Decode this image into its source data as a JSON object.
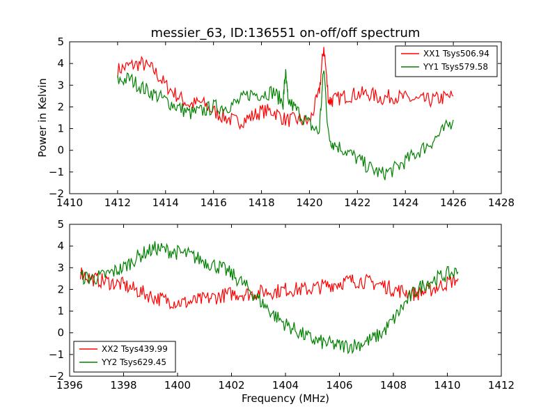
{
  "title": "messier_63, ID:136551 on-off/off spectrum",
  "colors": {
    "red": "#ff0000",
    "green": "#008000"
  },
  "chart_data": [
    {
      "type": "line",
      "xlabel": "",
      "ylabel": "Power in Kelvin",
      "xlim": [
        1410,
        1428
      ],
      "ylim": [
        -2,
        5
      ],
      "xticks": [
        "1410",
        "1412",
        "1414",
        "1416",
        "1418",
        "1420",
        "1422",
        "1424",
        "1426",
        "1428"
      ],
      "yticks": [
        "−2",
        "−1",
        "0",
        "1",
        "2",
        "3",
        "4",
        "5"
      ],
      "grid": false,
      "legend_position": "top-right",
      "series": [
        {
          "name": "XX1 Tsys506.94",
          "color": "#ff0000",
          "x": [
            1412.0,
            1412.5,
            1413.0,
            1413.5,
            1414.0,
            1414.5,
            1415.0,
            1415.5,
            1416.0,
            1416.5,
            1417.0,
            1417.5,
            1418.0,
            1418.5,
            1419.0,
            1419.5,
            1420.0,
            1420.4,
            1420.6,
            1420.8,
            1421.0,
            1421.5,
            1422.0,
            1422.5,
            1423.0,
            1423.5,
            1424.0,
            1424.5,
            1425.0,
            1425.5,
            1426.0
          ],
          "y": [
            3.7,
            3.9,
            4.0,
            3.7,
            3.0,
            2.5,
            2.1,
            2.2,
            1.8,
            1.5,
            1.3,
            1.5,
            1.8,
            1.8,
            1.4,
            1.4,
            1.3,
            2.6,
            4.8,
            2.3,
            2.3,
            2.5,
            2.6,
            2.6,
            2.4,
            2.5,
            2.4,
            2.3,
            2.3,
            2.4,
            2.5
          ]
        },
        {
          "name": "YY1 Tsys579.58",
          "color": "#008000",
          "x": [
            1412.0,
            1412.5,
            1413.0,
            1413.5,
            1414.0,
            1414.5,
            1415.0,
            1415.5,
            1416.0,
            1416.5,
            1417.0,
            1417.5,
            1418.0,
            1418.5,
            1418.9,
            1419.0,
            1419.1,
            1419.5,
            1420.0,
            1420.4,
            1420.6,
            1420.8,
            1421.0,
            1421.5,
            1422.0,
            1422.5,
            1423.0,
            1423.5,
            1424.0,
            1424.5,
            1425.0,
            1425.5,
            1426.0
          ],
          "y": [
            3.2,
            3.3,
            2.9,
            2.6,
            2.3,
            2.0,
            1.7,
            1.8,
            2.0,
            2.0,
            2.2,
            2.6,
            2.6,
            2.7,
            2.2,
            3.6,
            2.3,
            1.8,
            1.2,
            0.8,
            3.8,
            0.6,
            0.3,
            0.0,
            -0.4,
            -0.8,
            -1.1,
            -0.9,
            -0.5,
            -0.1,
            0.3,
            0.8,
            1.4
          ]
        }
      ]
    },
    {
      "type": "line",
      "xlabel": "Frequency (MHz)",
      "ylabel": "",
      "xlim": [
        1396,
        1412
      ],
      "ylim": [
        -2,
        5
      ],
      "xticks": [
        "1396",
        "1398",
        "1400",
        "1402",
        "1404",
        "1406",
        "1408",
        "1410",
        "1412"
      ],
      "yticks": [
        "−2",
        "−1",
        "0",
        "1",
        "2",
        "3",
        "4",
        "5"
      ],
      "grid": false,
      "legend_position": "bottom-left",
      "series": [
        {
          "name": "XX2 Tsys439.99",
          "color": "#ff0000",
          "x": [
            1396.4,
            1396.8,
            1397.2,
            1397.6,
            1398.0,
            1398.4,
            1398.8,
            1399.2,
            1399.6,
            1400.0,
            1400.4,
            1400.8,
            1401.2,
            1401.6,
            1402.0,
            1402.4,
            1402.8,
            1403.2,
            1403.6,
            1404.0,
            1404.4,
            1404.8,
            1405.2,
            1405.6,
            1406.0,
            1406.4,
            1406.8,
            1407.2,
            1407.6,
            1408.0,
            1408.4,
            1408.8,
            1409.2,
            1409.6,
            1410.0,
            1410.4
          ],
          "y": [
            2.8,
            2.5,
            2.4,
            2.3,
            2.2,
            2.0,
            1.8,
            1.6,
            1.5,
            1.4,
            1.4,
            1.5,
            1.6,
            1.7,
            1.8,
            1.8,
            1.8,
            1.9,
            1.9,
            2.0,
            2.0,
            2.0,
            2.1,
            2.2,
            2.3,
            2.4,
            2.4,
            2.3,
            2.2,
            2.0,
            1.9,
            1.8,
            1.9,
            2.1,
            2.3,
            2.5
          ]
        },
        {
          "name": "YY2 Tsys629.45",
          "color": "#008000",
          "x": [
            1396.4,
            1396.8,
            1397.2,
            1397.6,
            1398.0,
            1398.4,
            1398.8,
            1399.2,
            1399.6,
            1400.0,
            1400.4,
            1400.8,
            1401.2,
            1401.6,
            1402.0,
            1402.4,
            1402.8,
            1403.2,
            1403.6,
            1404.0,
            1404.4,
            1404.8,
            1405.2,
            1405.6,
            1406.0,
            1406.4,
            1406.8,
            1407.2,
            1407.6,
            1408.0,
            1408.4,
            1408.8,
            1409.2,
            1409.6,
            1410.0,
            1410.4
          ],
          "y": [
            2.6,
            2.5,
            2.6,
            2.8,
            3.0,
            3.4,
            3.7,
            3.9,
            3.8,
            3.7,
            3.6,
            3.4,
            3.2,
            3.0,
            2.7,
            2.3,
            1.8,
            1.3,
            0.8,
            0.4,
            0.1,
            -0.2,
            -0.4,
            -0.5,
            -0.6,
            -0.6,
            -0.5,
            -0.3,
            0.0,
            0.6,
            1.3,
            1.9,
            2.3,
            2.5,
            2.7,
            2.8
          ]
        }
      ]
    }
  ]
}
